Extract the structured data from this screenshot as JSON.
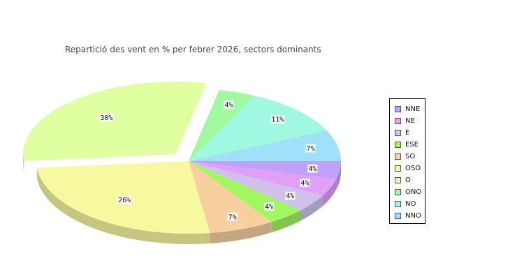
{
  "title": "Repartició des vent en % per febrer 2026, sectors dominants",
  "chart_data": {
    "type": "pie",
    "title": "Repartició des vent en % per febrer 2026, sectors dominants",
    "slices": [
      {
        "name": "NNE",
        "value": 4,
        "label": "4%",
        "color": "#c0a0f8"
      },
      {
        "name": "NE",
        "value": 4,
        "label": "4%",
        "color": "#e0a0f8"
      },
      {
        "name": "E",
        "value": 4,
        "label": "4%",
        "color": "#d0c0ec"
      },
      {
        "name": "ESE",
        "value": 4,
        "label": "4%",
        "color": "#a0f860"
      },
      {
        "name": "SO",
        "value": 7,
        "label": "7%",
        "color": "#f8d0a0"
      },
      {
        "name": "OSO",
        "value": 26,
        "label": "26%",
        "color": "#f8f8a0"
      },
      {
        "name": "O",
        "value": 30,
        "label": "30%",
        "color": "#e0ffa0",
        "exploded": true
      },
      {
        "name": "ONO",
        "value": 4,
        "label": "4%",
        "color": "#a0f8a0"
      },
      {
        "name": "NO",
        "value": 11,
        "label": "11%",
        "color": "#a0f8e0"
      },
      {
        "name": "NNO",
        "value": 7,
        "label": "7%",
        "color": "#a0e0f8"
      }
    ],
    "legend_position": "right",
    "style": "3d-exploded"
  }
}
